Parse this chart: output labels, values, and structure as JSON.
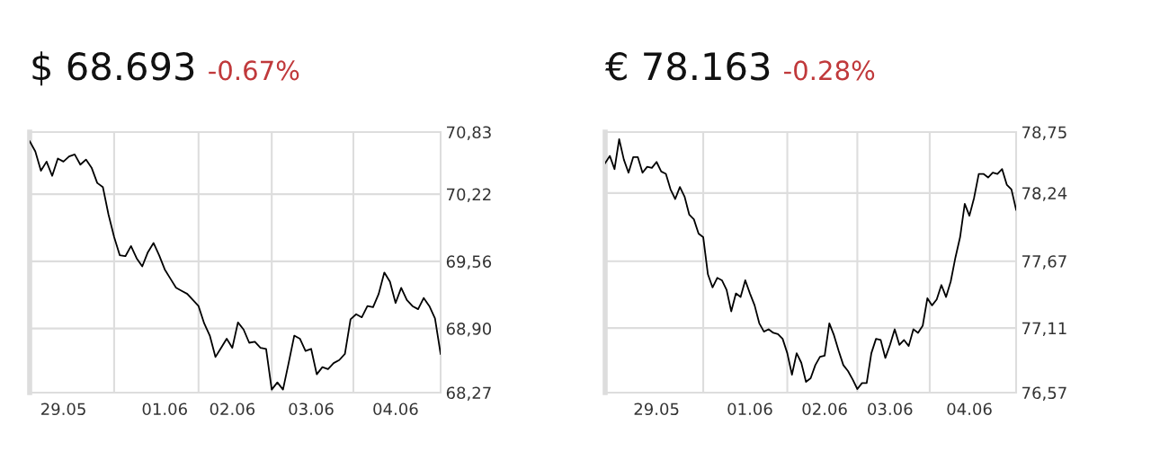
{
  "chart_data": [
    {
      "type": "line",
      "title": "$ 68.693",
      "subtitle": "-0.67%",
      "grid": true,
      "marker": "none",
      "line_style": "solid",
      "ylim": [
        68.27,
        70.83
      ],
      "categories": [
        null,
        null,
        null,
        null,
        null,
        null,
        "29.05",
        null,
        null,
        null,
        null,
        null,
        null,
        null,
        null,
        null,
        null,
        null,
        null,
        null,
        null,
        null,
        null,
        null,
        "01.06",
        null,
        null,
        null,
        null,
        null,
        null,
        null,
        null,
        null,
        null,
        null,
        "02.06",
        null,
        null,
        null,
        null,
        null,
        null,
        null,
        null,
        null,
        null,
        null,
        null,
        null,
        "03.06",
        null,
        null,
        null,
        null,
        null,
        null,
        null,
        null,
        null,
        null,
        null,
        null,
        null,
        null,
        "04.06",
        null,
        null,
        null,
        null,
        null,
        null,
        null,
        null
      ],
      "yticks": [
        {
          "value": 68.27,
          "label": "68,27"
        },
        {
          "value": 68.9,
          "label": "68,90"
        },
        {
          "value": 69.56,
          "label": "69,56"
        },
        {
          "value": 70.22,
          "label": "70,22"
        },
        {
          "value": 70.83,
          "label": "70,83"
        }
      ],
      "series": [
        {
          "color": "#000000",
          "values": [
            70.74,
            70.64,
            70.45,
            70.54,
            70.4,
            70.57,
            70.54,
            70.59,
            70.61,
            70.51,
            70.56,
            70.48,
            70.33,
            70.29,
            70.02,
            69.8,
            69.62,
            69.61,
            69.71,
            69.59,
            69.51,
            69.65,
            69.74,
            69.62,
            69.48,
            69.39,
            69.3,
            69.27,
            69.24,
            69.18,
            69.12,
            68.95,
            68.83,
            68.62,
            68.71,
            68.8,
            68.71,
            68.96,
            68.89,
            68.76,
            68.77,
            68.71,
            68.7,
            68.3,
            68.37,
            68.3,
            68.56,
            68.83,
            68.8,
            68.68,
            68.7,
            68.45,
            68.52,
            68.5,
            68.56,
            68.59,
            68.65,
            68.99,
            69.04,
            69.01,
            69.12,
            69.11,
            69.24,
            69.45,
            69.36,
            69.15,
            69.3,
            69.18,
            69.12,
            69.09,
            69.2,
            69.12,
            69.0,
            68.65
          ]
        }
      ]
    },
    {
      "type": "line",
      "title": "€ 78.163",
      "subtitle": "-0.28%",
      "grid": true,
      "marker": "none",
      "line_style": "solid",
      "ylim": [
        76.57,
        78.75
      ],
      "categories": [
        null,
        null,
        null,
        null,
        null,
        null,
        null,
        null,
        null,
        null,
        null,
        "29.05",
        null,
        null,
        null,
        null,
        null,
        null,
        null,
        null,
        null,
        null,
        null,
        null,
        null,
        null,
        null,
        null,
        null,
        null,
        null,
        "01.06",
        null,
        null,
        null,
        null,
        null,
        null,
        null,
        null,
        null,
        null,
        null,
        null,
        null,
        null,
        null,
        "02.06",
        null,
        null,
        null,
        null,
        null,
        null,
        null,
        null,
        null,
        null,
        null,
        null,
        null,
        "03.06",
        null,
        null,
        null,
        null,
        null,
        null,
        null,
        null,
        null,
        null,
        null,
        null,
        null,
        null,
        null,
        null,
        "04.06",
        null,
        null,
        null,
        null,
        null,
        null,
        null,
        null,
        null,
        null
      ],
      "yticks": [
        {
          "value": 76.57,
          "label": "76,57"
        },
        {
          "value": 77.11,
          "label": "77,11"
        },
        {
          "value": 77.67,
          "label": "77,67"
        },
        {
          "value": 78.24,
          "label": "78,24"
        },
        {
          "value": 78.75,
          "label": "78,75"
        }
      ],
      "series": [
        {
          "color": "#000000",
          "values": [
            78.49,
            78.55,
            78.44,
            78.69,
            78.52,
            78.41,
            78.54,
            78.54,
            78.41,
            78.46,
            78.45,
            78.5,
            78.42,
            78.4,
            78.27,
            78.19,
            78.29,
            78.21,
            78.06,
            78.02,
            77.9,
            77.87,
            77.56,
            77.45,
            77.53,
            77.51,
            77.43,
            77.25,
            77.4,
            77.37,
            77.51,
            77.4,
            77.3,
            77.15,
            77.08,
            77.1,
            77.07,
            77.06,
            77.02,
            76.9,
            76.72,
            76.9,
            76.82,
            76.66,
            76.69,
            76.8,
            76.87,
            76.88,
            77.15,
            77.05,
            76.92,
            76.8,
            76.75,
            76.68,
            76.6,
            76.65,
            76.65,
            76.9,
            77.02,
            77.01,
            76.86,
            76.97,
            77.1,
            76.97,
            77.01,
            76.96,
            77.1,
            77.07,
            77.13,
            77.36,
            77.3,
            77.35,
            77.47,
            77.37,
            77.5,
            77.7,
            77.87,
            78.15,
            78.05,
            78.2,
            78.4,
            78.4,
            78.37,
            78.41,
            78.4,
            78.44,
            78.31,
            78.27,
            78.1
          ]
        }
      ]
    }
  ]
}
